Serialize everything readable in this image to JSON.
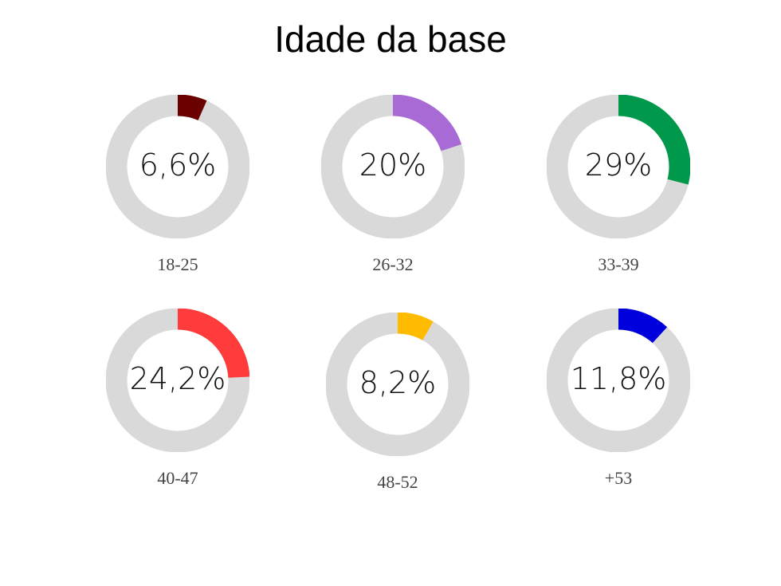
{
  "chart_data": {
    "type": "donut",
    "title": "Idade da base",
    "track_color": "#d9d9d9",
    "items": [
      {
        "category": "18-25",
        "label": "6,6%",
        "value": 6.6,
        "color": "#6b0000"
      },
      {
        "category": "26-32",
        "label": "20%",
        "value": 20,
        "color": "#a86bd6"
      },
      {
        "category": "33-39",
        "label": "29%",
        "value": 29,
        "color": "#00994c"
      },
      {
        "category": "40-47",
        "label": "24,2%",
        "value": 24.2,
        "color": "#ff3b3b"
      },
      {
        "category": "48-52",
        "label": "8,2%",
        "value": 8.2,
        "color": "#ffbb00"
      },
      {
        "category": "+53",
        "label": "11,8%",
        "value": 11.8,
        "color": "#0000dd"
      }
    ]
  }
}
